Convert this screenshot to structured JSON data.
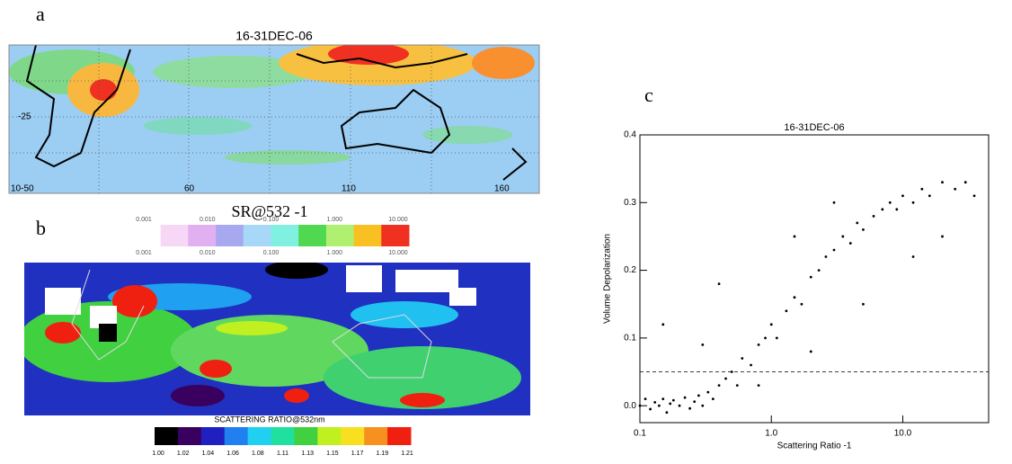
{
  "panel_labels": [
    "a",
    "b",
    "c"
  ],
  "map_a": {
    "title": "16-31DEC-06",
    "labels": [
      "-25",
      "10-50",
      "60",
      "110",
      "160"
    ]
  },
  "map_b": {
    "colorbar_title": "SR@532 -1",
    "colorbar_ticks": [
      "0.001",
      "0.010",
      "0.100",
      "1.000",
      "10.000"
    ],
    "colorbar_colors": [
      "#ffffff",
      "#f6d8f6",
      "#e0b0f0",
      "#a8a8f0",
      "#a8d8f8",
      "#80f0e0",
      "#50d850",
      "#b0f070",
      "#f8c020",
      "#f03020"
    ],
    "scale_title": "SCATTERING RATIO@532nm",
    "scale_ticks": [
      "1.00",
      "1.02",
      "1.04",
      "1.06",
      "1.08",
      "1.11",
      "1.13",
      "1.15",
      "1.17",
      "1.19",
      "1.21"
    ],
    "scale_colors": [
      "#000000",
      "#3a0060",
      "#2020c0",
      "#2080f0",
      "#20d0f0",
      "#20e0a0",
      "#40d040",
      "#c0f020",
      "#f8e020",
      "#f89020",
      "#f02010"
    ]
  },
  "chart_data": {
    "type": "scatter",
    "title": "16-31DEC-06",
    "x_label": "Scattering Ratio -1",
    "y_label": "Volume Depolarization",
    "x_scale": "log",
    "color": "#000000",
    "xlim": [
      0.1,
      45
    ],
    "xticks": [
      {
        "value": 0.1,
        "label": "0.1"
      },
      {
        "value": 1,
        "label": "1.0"
      },
      {
        "value": 10,
        "label": "10.0"
      }
    ],
    "ylim": [
      -0.025,
      0.4
    ],
    "yticks": [
      {
        "value": 0,
        "label": "0.0"
      },
      0.1,
      0.2,
      0.3,
      0.4
    ],
    "hline": 0.05,
    "series": [
      {
        "x": [
          0.1,
          0.11,
          0.12,
          0.13,
          0.14,
          0.15,
          0.16,
          0.17,
          0.18,
          0.2,
          0.22,
          0.24,
          0.26,
          0.28,
          0.3,
          0.33,
          0.36,
          0.4,
          0.45,
          0.5,
          0.55,
          0.6,
          0.7,
          0.8,
          0.9,
          1.0,
          1.1,
          1.3,
          1.5,
          1.7,
          2.0,
          2.3,
          2.6,
          3.0,
          3.5,
          4.0,
          4.5,
          5.0,
          6.0,
          7.0,
          8.0,
          9.0,
          10.0,
          12,
          14,
          16,
          20,
          25,
          30,
          35,
          0.15,
          0.3,
          2.0,
          5.0,
          12,
          0.8,
          1.5,
          0.4,
          20,
          3
        ],
        "values": [
          0.0,
          0.01,
          -0.005,
          0.005,
          0.0,
          0.01,
          -0.01,
          0.003,
          0.008,
          0.0,
          0.012,
          -0.004,
          0.006,
          0.015,
          0.0,
          0.02,
          0.01,
          0.03,
          0.04,
          0.05,
          0.03,
          0.07,
          0.06,
          0.09,
          0.1,
          0.12,
          0.1,
          0.14,
          0.16,
          0.15,
          0.19,
          0.2,
          0.22,
          0.23,
          0.25,
          0.24,
          0.27,
          0.26,
          0.28,
          0.29,
          0.3,
          0.29,
          0.31,
          0.3,
          0.32,
          0.31,
          0.33,
          0.32,
          0.33,
          0.31,
          0.12,
          0.09,
          0.08,
          0.15,
          0.22,
          0.03,
          0.25,
          0.18,
          0.25,
          0.3
        ]
      }
    ]
  }
}
